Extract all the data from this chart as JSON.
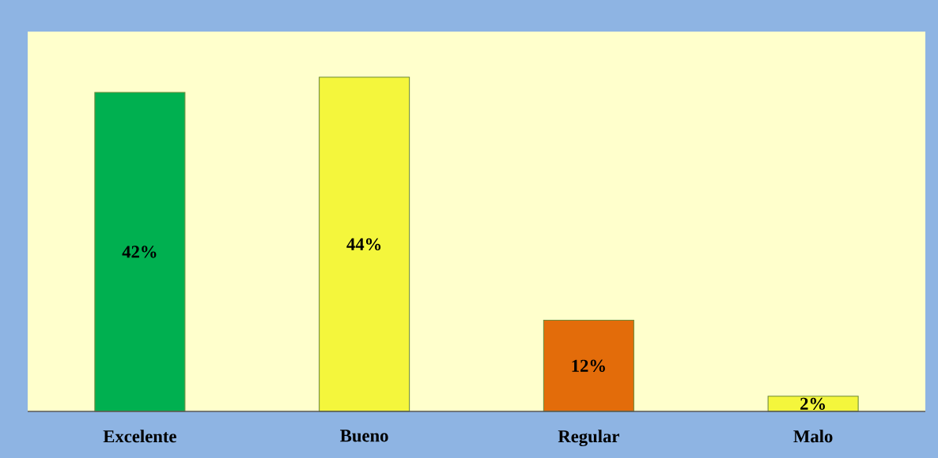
{
  "chart_data": {
    "type": "bar",
    "categories": [
      "Excelente",
      "Bueno",
      "Regular",
      "Malo"
    ],
    "values": [
      42,
      44,
      12,
      2
    ],
    "colors": [
      "#00b050",
      "#f4f63c",
      "#e36c0a",
      "#f4f63c"
    ],
    "value_labels": [
      "42%",
      "44%",
      "12%",
      "2%"
    ],
    "ylim": [
      0,
      50
    ]
  }
}
